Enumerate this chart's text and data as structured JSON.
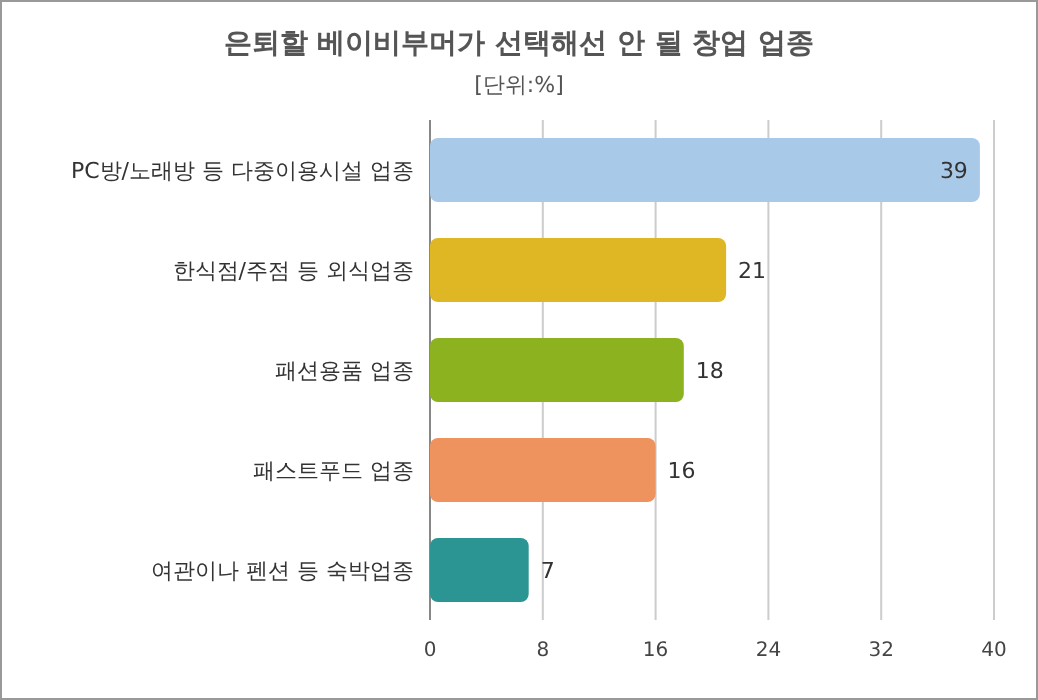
{
  "chart_data": {
    "type": "bar",
    "orientation": "horizontal",
    "title": "은퇴할 베이비부머가 선택해선 안 될 창업 업종",
    "subtitle": "[단위:%]",
    "categories": [
      "PC방/노래방 등 다중이용시설 업종",
      "한식점/주점 등 외식업종",
      "패션용품 업종",
      "패스트푸드 업종",
      "여관이나 펜션 등 숙박업종"
    ],
    "values": [
      39,
      21,
      18,
      16,
      7
    ],
    "colors": [
      "#a9c9e8",
      "#dfb724",
      "#8db21f",
      "#ee935e",
      "#2b9593"
    ],
    "xlim": [
      0,
      40
    ],
    "xticks": [
      0,
      8,
      16,
      24,
      32,
      40
    ],
    "grid": "x",
    "data_labels": true
  }
}
